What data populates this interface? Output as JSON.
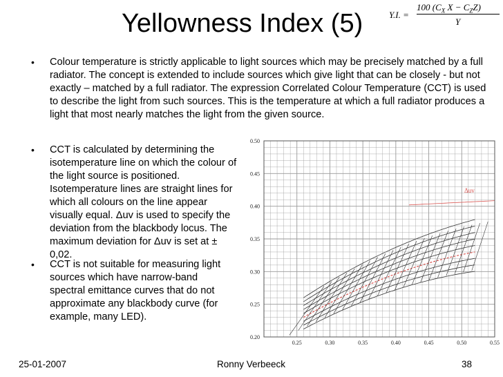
{
  "slide": {
    "title": "Yellowness Index (5)",
    "formula": {
      "lhs": "Y.I. =",
      "numerator": "100 (C",
      "num_sub1": "X",
      "num_mid": "X − C",
      "num_sub2": "Z",
      "num_end": "Z)",
      "denominator": "Y"
    },
    "bullets": [
      "Colour temperature is strictly applicable to light sources which may be precisely matched by a full radiator. The concept is extended to include sources which give light that can be closely - but not exactly – matched by a full radiator. The expression Correlated Colour Temperature (CCT) is used to describe the light from such sources. This is the temperature at which a full radiator produces a light that most nearly matches the light from the given source.",
      "CCT is calculated by determining the isotemperature line on which the colour of the light source is positioned. Isotemperature lines are straight lines for which all colours on the line appear visually equal. Δuv is used to specify the deviation from the blackbody locus. The maximum deviation for Δuv is set at ± 0,02.",
      "CCT is not suitable for measuring light sources which have narrow-band spectral emittance curves that do not approximate any blackbody curve (for example, many LED)."
    ],
    "bullet_symbol": "•",
    "footer": {
      "date": "25-01-2007",
      "author": "Ronny Verbeeck",
      "page": "38"
    }
  },
  "chart_data": {
    "type": "diagram",
    "xlim": [
      0.2,
      0.55
    ],
    "ylim": [
      0.2,
      0.5
    ],
    "xticks": [
      "0.25",
      "0.30",
      "0.35",
      "0.40",
      "0.45",
      "0.50",
      "0.55"
    ],
    "yticks": [
      "0.20",
      "0.25",
      "0.30",
      "0.35",
      "0.40",
      "0.45",
      "0.50"
    ],
    "annotation": "Δuv",
    "grid": true,
    "colors": {
      "grid": "#999999",
      "curves": "#333333",
      "accent": "#d9534f"
    }
  }
}
